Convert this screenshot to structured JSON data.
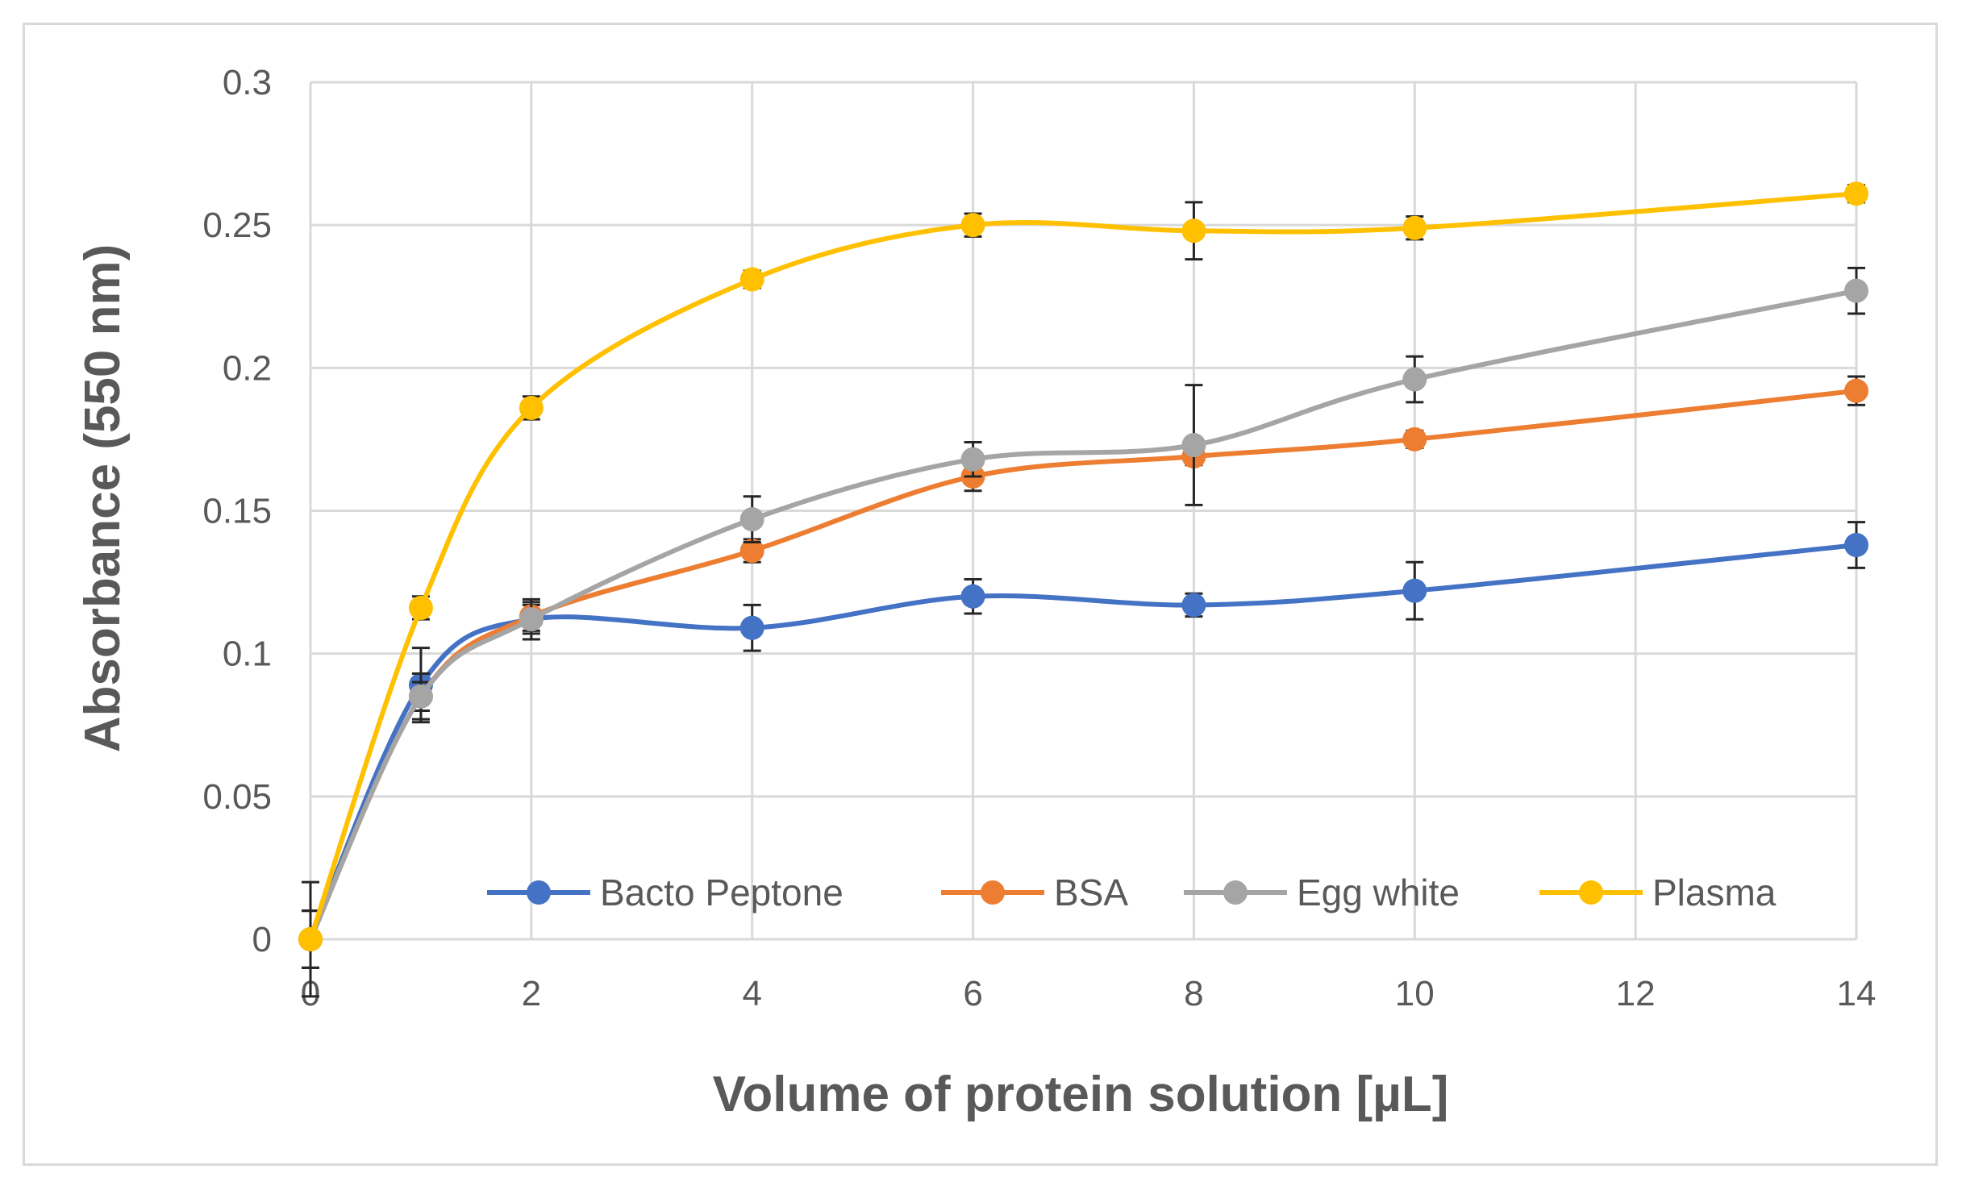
{
  "chart_data": {
    "type": "line",
    "title": "",
    "xlabel": "Volume of protein solution [µL]",
    "ylabel": "Absorbance  (550 nm)",
    "xlim": [
      0,
      14
    ],
    "ylim": [
      0,
      0.3
    ],
    "x_ticks": [
      0,
      2,
      4,
      6,
      8,
      10,
      12,
      14
    ],
    "x_tick_labels": [
      "0",
      "2",
      "4",
      "6",
      "8",
      "10",
      "12",
      "14"
    ],
    "y_ticks": [
      0,
      0.05,
      0.1,
      0.15,
      0.2,
      0.25,
      0.3
    ],
    "y_tick_labels": [
      "0",
      "0.05",
      "0.1",
      "0.15",
      "0.2",
      "0.25",
      "0.3"
    ],
    "grid": true,
    "legend_position": "bottom-inside",
    "x": [
      0,
      1,
      2,
      4,
      6,
      8,
      10,
      14
    ],
    "series": [
      {
        "name": "Bacto Peptone",
        "color": "#4472C4",
        "values": [
          0,
          0.089,
          0.112,
          0.109,
          0.12,
          0.117,
          0.122,
          0.138
        ],
        "errors": [
          0.02,
          0.013,
          0.005,
          0.008,
          0.006,
          0.004,
          0.01,
          0.008
        ]
      },
      {
        "name": "BSA",
        "color": "#ED7D31",
        "values": [
          0,
          0.085,
          0.113,
          0.136,
          0.162,
          0.169,
          0.175,
          0.192
        ],
        "errors": [
          0.01,
          0.005,
          0.005,
          0.004,
          0.005,
          0.003,
          0.003,
          0.005
        ]
      },
      {
        "name": "Egg white",
        "color": "#A5A5A5",
        "values": [
          0,
          0.085,
          0.112,
          0.147,
          0.168,
          0.173,
          0.196,
          0.227
        ],
        "errors": [
          0.01,
          0.008,
          0.007,
          0.008,
          0.006,
          0.021,
          0.008,
          0.008
        ]
      },
      {
        "name": "Plasma",
        "color": "#FFC000",
        "values": [
          0,
          0.116,
          0.186,
          0.231,
          0.25,
          0.248,
          0.249,
          0.261
        ],
        "errors": [
          0.01,
          0.004,
          0.004,
          0.003,
          0.004,
          0.01,
          0.004,
          0.003
        ]
      }
    ]
  }
}
